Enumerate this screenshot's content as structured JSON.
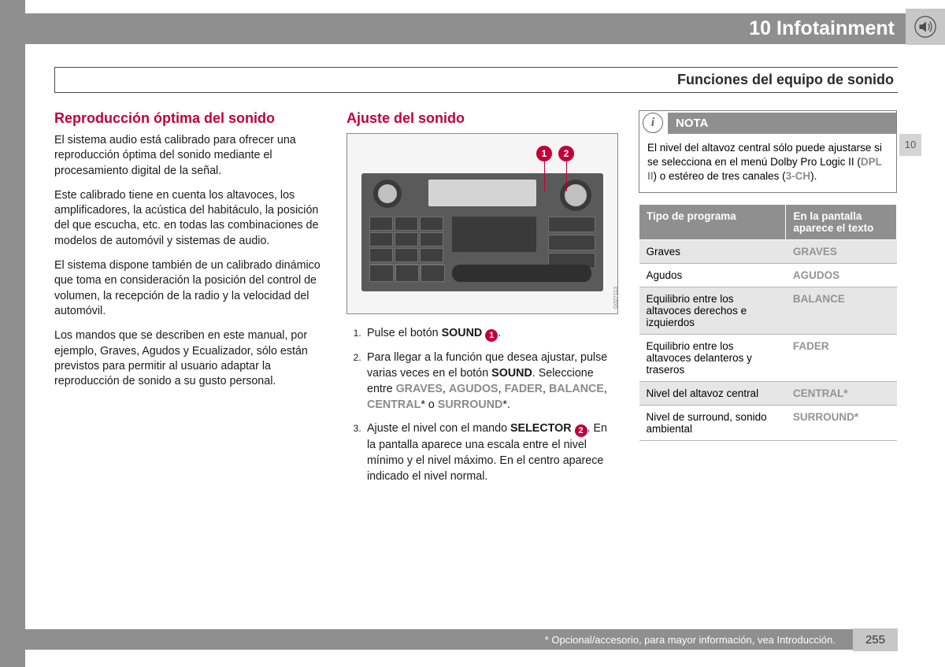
{
  "chapter": {
    "number": "10",
    "title": "Infotainment"
  },
  "section_title": "Funciones del equipo de sonido",
  "side_tab": "10",
  "col1": {
    "heading": "Reproducción óptima del sonido",
    "p1": "El sistema audio está calibrado para ofrecer una reproducción óptima del sonido mediante el procesamiento digital de la señal.",
    "p2": "Este calibrado tiene en cuenta los altavoces, los amplificadores, la acústica del habitáculo, la posición del que escucha, etc. en todas las combinaciones de modelos de automóvil y sistemas de audio.",
    "p3": "El sistema dispone también de un calibrado dinámico que toma en consideración la posición del control de volumen, la recepción de la radio y la velocidad del automóvil.",
    "p4": "Los mandos que se describen en este manual, por ejemplo, Graves, Agudos y Ecualizador, sólo están previstos para permitir al usuario adaptar la reproducción de sonido a su gusto personal."
  },
  "col2": {
    "heading": "Ajuste del sonido",
    "callouts": {
      "one": "1",
      "two": "2"
    },
    "fig_code": "G027113",
    "step1_a": "Pulse el botón ",
    "step1_b": "SOUND",
    "step2_a": "Para llegar a la función que desea ajustar, pulse varias veces en el botón ",
    "step2_b": "SOUND",
    "step2_c": ". Seleccione entre ",
    "opts": {
      "graves": "GRAVES",
      "agudos": "AGUDOS",
      "fader": "FADER",
      "balance": "BALANCE",
      "central": "CENTRAL",
      "surround": "SURROUND"
    },
    "step3_a": "Ajuste el nivel con el mando ",
    "step3_b": "SELECTOR",
    "step3_c": ". En la pantalla aparece una escala entre el nivel mínimo y el nivel máximo. En el centro aparece indicado el nivel normal."
  },
  "col3": {
    "note_title": "NOTA",
    "note_a": "El nivel del altavoz central sólo puede ajustarse si se selecciona en el menú Dolby Pro Logic II (",
    "note_b": "DPL II",
    "note_c": ") o estéreo de tres canales (",
    "note_d": "3-CH",
    "note_e": ").",
    "th1": "Tipo de programa",
    "th2": "En la pantalla aparece el texto",
    "rows": [
      {
        "desc": "Graves",
        "code": "GRAVES",
        "shade": true
      },
      {
        "desc": "Agudos",
        "code": "AGUDOS",
        "shade": false
      },
      {
        "desc": "Equilibrio entre los altavoces derechos e izquierdos",
        "code": "BALANCE",
        "shade": true
      },
      {
        "desc": "Equilibrio entre los altavoces delanteros y traseros",
        "code": "FADER",
        "shade": false
      },
      {
        "desc": "Nivel del altavoz central",
        "code": "CENTRAL*",
        "shade": true
      },
      {
        "desc": "Nivel de surround, sonido ambiental",
        "code": "SURROUND*",
        "shade": false
      }
    ]
  },
  "footer": {
    "note": "* Opcional/accesorio, para mayor información, vea Introducción.",
    "page": "255"
  },
  "colors": {
    "gray_dark": "#8f8f8f",
    "gray_light": "#c7c7c7",
    "accent": "#c1003b",
    "muted_bold": "#949494"
  }
}
